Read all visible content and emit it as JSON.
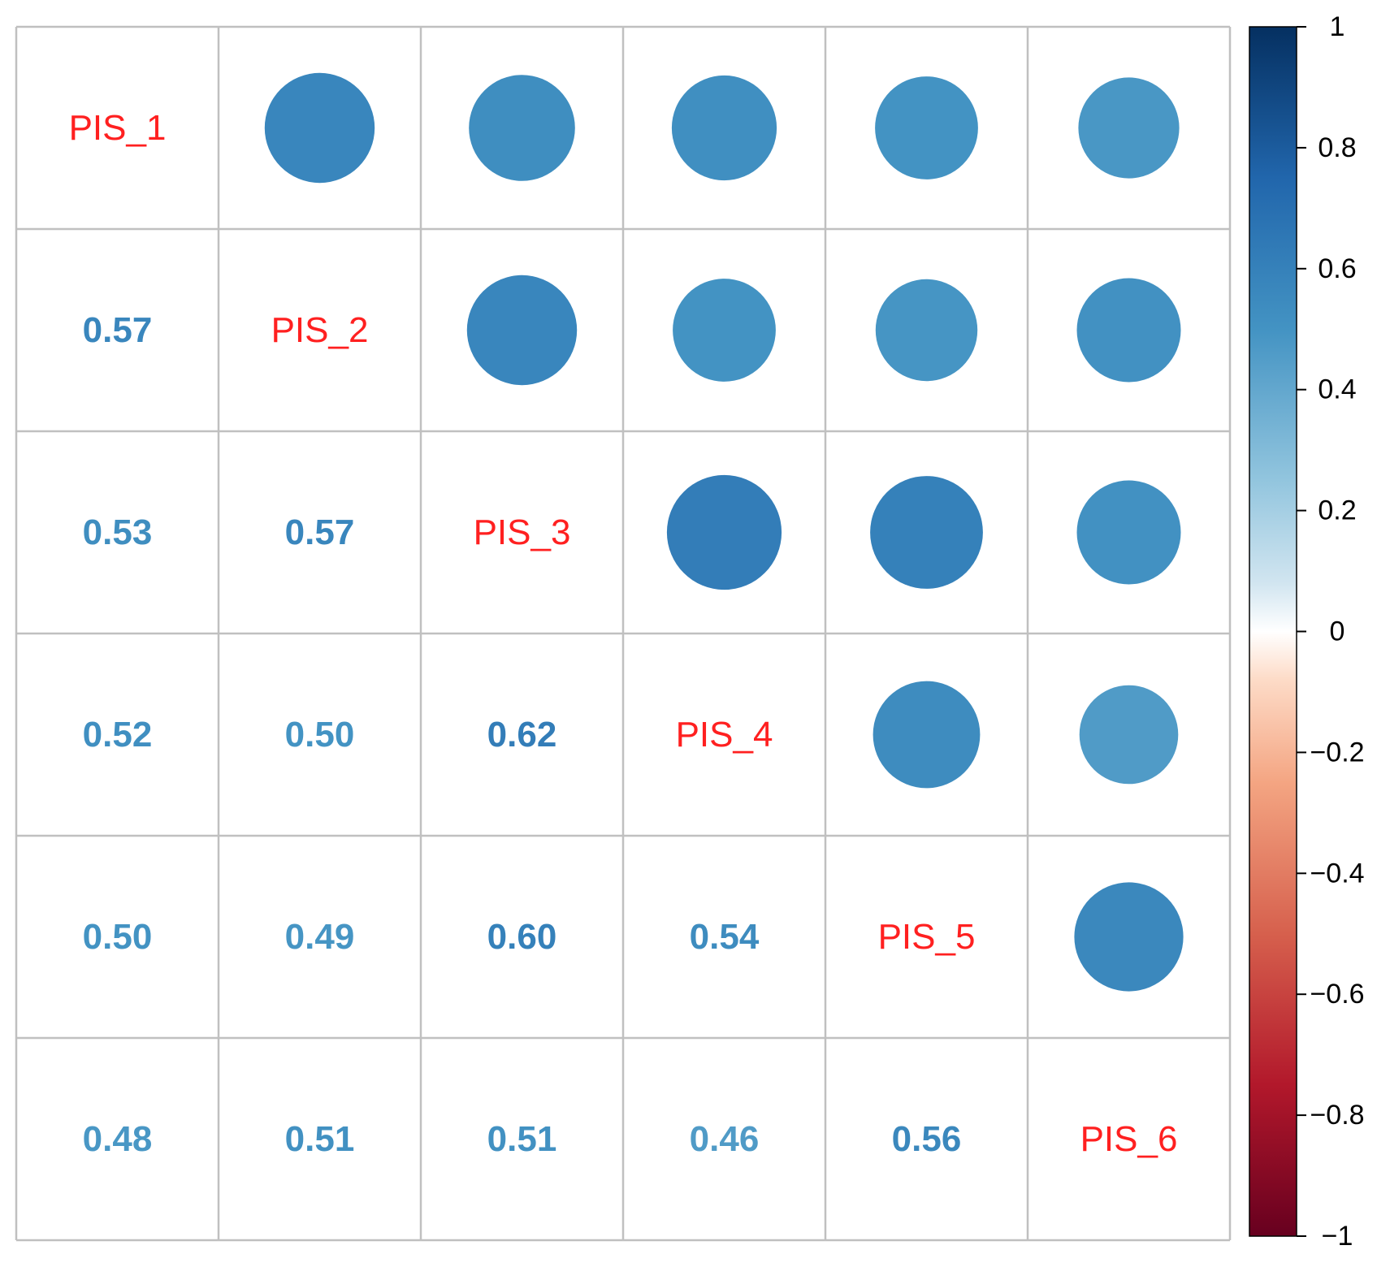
{
  "chart_data": {
    "type": "heatmap",
    "variables": [
      "PIS_1",
      "PIS_2",
      "PIS_3",
      "PIS_4",
      "PIS_5",
      "PIS_6"
    ],
    "matrix": [
      [
        1.0,
        0.57,
        0.53,
        0.52,
        0.5,
        0.48
      ],
      [
        0.57,
        1.0,
        0.57,
        0.5,
        0.49,
        0.51
      ],
      [
        0.53,
        0.57,
        1.0,
        0.62,
        0.6,
        0.51
      ],
      [
        0.52,
        0.5,
        0.62,
        1.0,
        0.54,
        0.46
      ],
      [
        0.5,
        0.49,
        0.6,
        0.54,
        1.0,
        0.56
      ],
      [
        0.48,
        0.51,
        0.51,
        0.46,
        0.56,
        1.0
      ]
    ],
    "lower_triangle": "number",
    "upper_triangle": "circle",
    "diagonal": "variable name",
    "value_format": "2 decimals",
    "colorbar": {
      "range": [
        -1,
        1
      ],
      "ticks": [
        1,
        0.8,
        0.6,
        0.4,
        0.2,
        0,
        -0.2,
        -0.4,
        -0.6,
        -0.8,
        -1
      ],
      "tick_labels": [
        "1",
        "0.8",
        "0.6",
        "0.4",
        "0.2",
        "0",
        "−0.2",
        "−0.4",
        "−0.6",
        "−0.8",
        "−1"
      ],
      "color_stops": [
        {
          "value": -1.0,
          "color": "#67001f"
        },
        {
          "value": -0.75,
          "color": "#b2182b"
        },
        {
          "value": -0.5,
          "color": "#d6604d"
        },
        {
          "value": -0.25,
          "color": "#f4a582"
        },
        {
          "value": -0.08,
          "color": "#fddbc7"
        },
        {
          "value": 0.0,
          "color": "#ffffff"
        },
        {
          "value": 0.08,
          "color": "#d1e5f0"
        },
        {
          "value": 0.25,
          "color": "#92c5de"
        },
        {
          "value": 0.5,
          "color": "#4393c3"
        },
        {
          "value": 0.75,
          "color": "#2166ac"
        },
        {
          "value": 1.0,
          "color": "#053061"
        }
      ],
      "placement": "right"
    },
    "grid": true,
    "colors": {
      "grid": "#c0c0c0",
      "variable_label": "#ff2020"
    }
  }
}
